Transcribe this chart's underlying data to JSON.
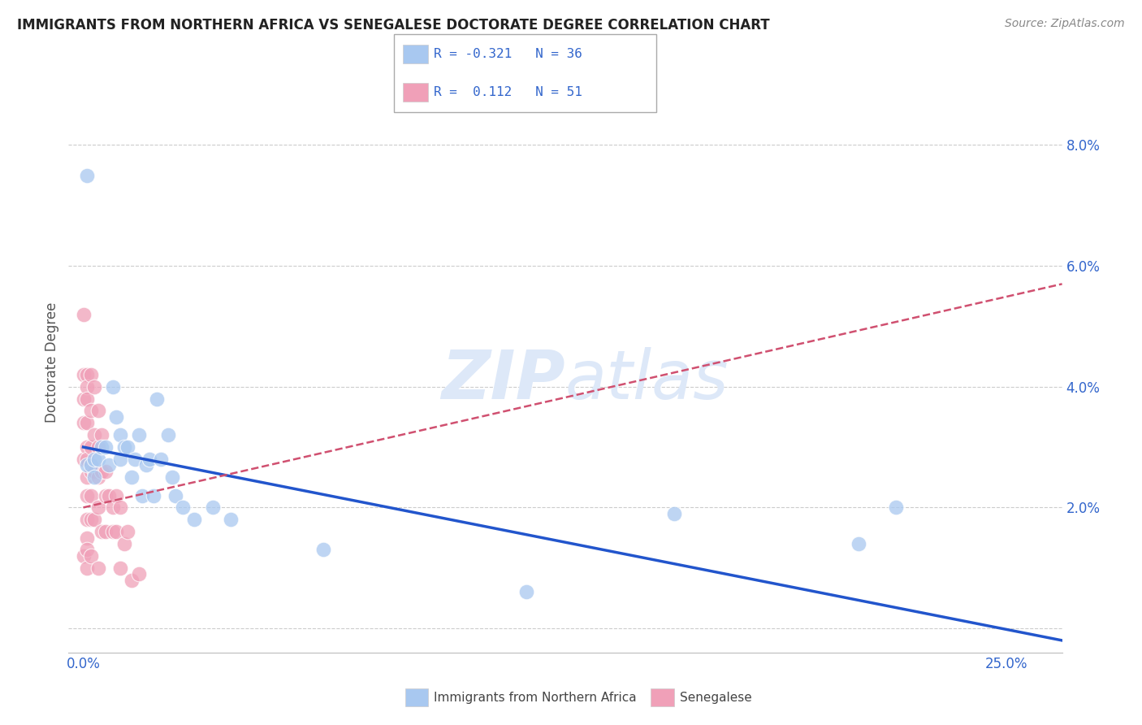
{
  "title": "IMMIGRANTS FROM NORTHERN AFRICA VS SENEGALESE DOCTORATE DEGREE CORRELATION CHART",
  "source": "Source: ZipAtlas.com",
  "ylabel": "Doctorate Degree",
  "legend_labels": [
    "Immigrants from Northern Africa",
    "Senegalese"
  ],
  "legend_r": [
    -0.321,
    0.112
  ],
  "legend_n": [
    36,
    51
  ],
  "blue_color": "#a8c8f0",
  "pink_color": "#f0a0b8",
  "blue_line_color": "#2255cc",
  "pink_line_color": "#d05070",
  "x_ticks": [
    0.0,
    0.25
  ],
  "x_tick_labels": [
    "0.0%",
    "25.0%"
  ],
  "y_ticks_right": [
    0.0,
    0.02,
    0.04,
    0.06,
    0.08
  ],
  "y_tick_labels_right": [
    "",
    "2.0%",
    "4.0%",
    "6.0%",
    "8.0%"
  ],
  "xlim": [
    -0.004,
    0.265
  ],
  "ylim": [
    -0.004,
    0.092
  ],
  "blue_scatter_x": [
    0.001,
    0.001,
    0.002,
    0.003,
    0.003,
    0.004,
    0.005,
    0.006,
    0.007,
    0.008,
    0.009,
    0.01,
    0.01,
    0.011,
    0.012,
    0.013,
    0.014,
    0.015,
    0.016,
    0.017,
    0.018,
    0.019,
    0.02,
    0.021,
    0.023,
    0.024,
    0.025,
    0.027,
    0.03,
    0.035,
    0.04,
    0.065,
    0.12,
    0.16,
    0.21,
    0.22
  ],
  "blue_scatter_y": [
    0.075,
    0.027,
    0.027,
    0.028,
    0.025,
    0.028,
    0.03,
    0.03,
    0.027,
    0.04,
    0.035,
    0.032,
    0.028,
    0.03,
    0.03,
    0.025,
    0.028,
    0.032,
    0.022,
    0.027,
    0.028,
    0.022,
    0.038,
    0.028,
    0.032,
    0.025,
    0.022,
    0.02,
    0.018,
    0.02,
    0.018,
    0.013,
    0.006,
    0.019,
    0.014,
    0.02
  ],
  "pink_scatter_x": [
    0.0,
    0.0,
    0.0,
    0.0,
    0.0,
    0.0,
    0.001,
    0.001,
    0.001,
    0.001,
    0.001,
    0.001,
    0.001,
    0.001,
    0.001,
    0.001,
    0.001,
    0.001,
    0.002,
    0.002,
    0.002,
    0.002,
    0.002,
    0.002,
    0.002,
    0.003,
    0.003,
    0.003,
    0.003,
    0.004,
    0.004,
    0.004,
    0.004,
    0.004,
    0.005,
    0.005,
    0.005,
    0.006,
    0.006,
    0.006,
    0.007,
    0.008,
    0.008,
    0.009,
    0.009,
    0.01,
    0.01,
    0.011,
    0.012,
    0.013,
    0.015
  ],
  "pink_scatter_y": [
    0.052,
    0.042,
    0.038,
    0.034,
    0.028,
    0.012,
    0.042,
    0.04,
    0.038,
    0.034,
    0.03,
    0.028,
    0.025,
    0.022,
    0.018,
    0.015,
    0.013,
    0.01,
    0.042,
    0.036,
    0.03,
    0.026,
    0.022,
    0.018,
    0.012,
    0.04,
    0.032,
    0.026,
    0.018,
    0.036,
    0.03,
    0.025,
    0.02,
    0.01,
    0.032,
    0.026,
    0.016,
    0.026,
    0.022,
    0.016,
    0.022,
    0.02,
    0.016,
    0.022,
    0.016,
    0.02,
    0.01,
    0.014,
    0.016,
    0.008,
    0.009
  ],
  "blue_line_x_start": 0.0,
  "blue_line_x_end": 0.265,
  "blue_line_y_start": 0.03,
  "blue_line_y_end": -0.002,
  "pink_line_x_start": 0.0,
  "pink_line_x_end": 0.265,
  "pink_line_y_start": 0.02,
  "pink_line_y_end": 0.057,
  "background_color": "#ffffff",
  "grid_color": "#cccccc",
  "axis_color": "#3366cc",
  "title_color": "#222222",
  "source_color": "#888888",
  "label_color": "#555555",
  "watermark_color": "#dde8f8"
}
